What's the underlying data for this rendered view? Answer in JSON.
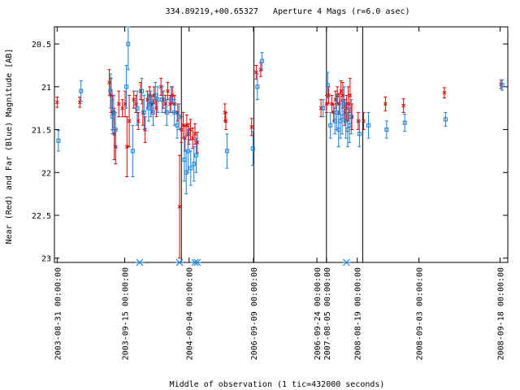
{
  "chart_data": {
    "type": "scatter",
    "title": "334.89219,+00.65327   Aperture 4 Mags (r=6.0 asec)",
    "xlabel": "Middle of observation (1 tic=432000 seconds)",
    "ylabel": "Near (Red) and Far (Blue) Magnitude [AB]",
    "ylim": [
      23.05,
      20.3
    ],
    "y_inverted": true,
    "y_ticks": [
      "20.5",
      "21",
      "21.5",
      "22",
      "22.5",
      "23"
    ],
    "x_tick_labels": [
      "2003-08-31 00:00:00",
      "2003-09-15 00:00:00",
      "2004-09-04 00:00:00",
      "2006-09-09 00:00:00",
      "2006-09-24 00:00:00",
      "2007-08-05 00:00:00",
      "2008-08-19 00:00:00",
      "2008-09-03 00:00:00",
      "2008-09-18 00:00:00"
    ],
    "x_axis_note": "discontinuous time axis; segment breaks shown as vertical lines",
    "segment_breaks_x": [
      0.28,
      0.44,
      0.6,
      0.68
    ],
    "x_range": [
      0,
      1
    ],
    "grid": false,
    "colors": {
      "near": "#dd0000",
      "far": "#1a7fd6",
      "axis": "#000000"
    },
    "series": [
      {
        "name": "Near",
        "marker": "x",
        "points": [
          {
            "x": 0.006,
            "y": 21.18,
            "err": 0.06
          },
          {
            "x": 0.056,
            "y": 21.18,
            "err": 0.06
          },
          {
            "x": 0.121,
            "y": 20.95,
            "err": 0.15
          },
          {
            "x": 0.125,
            "y": 21.1,
            "err": 0.2
          },
          {
            "x": 0.128,
            "y": 21.3,
            "err": 0.2
          },
          {
            "x": 0.132,
            "y": 21.55,
            "err": 0.3
          },
          {
            "x": 0.135,
            "y": 21.7,
            "err": 0.2
          },
          {
            "x": 0.142,
            "y": 21.2,
            "err": 0.15
          },
          {
            "x": 0.15,
            "y": 21.25,
            "err": 0.1
          },
          {
            "x": 0.156,
            "y": 21.2,
            "err": 0.15
          },
          {
            "x": 0.16,
            "y": 21.7,
            "err": 0.35
          },
          {
            "x": 0.165,
            "y": 21.4,
            "err": 0.3
          },
          {
            "x": 0.175,
            "y": 21.15,
            "err": 0.1
          },
          {
            "x": 0.18,
            "y": 21.2,
            "err": 0.1
          },
          {
            "x": 0.185,
            "y": 21.4,
            "err": 0.1
          },
          {
            "x": 0.19,
            "y": 21.05,
            "err": 0.1
          },
          {
            "x": 0.195,
            "y": 21.3,
            "err": 0.15
          },
          {
            "x": 0.2,
            "y": 21.5,
            "err": 0.15
          },
          {
            "x": 0.205,
            "y": 21.15,
            "err": 0.1
          },
          {
            "x": 0.21,
            "y": 21.1,
            "err": 0.1
          },
          {
            "x": 0.215,
            "y": 21.2,
            "err": 0.1
          },
          {
            "x": 0.22,
            "y": 21.1,
            "err": 0.1
          },
          {
            "x": 0.225,
            "y": 21.25,
            "err": 0.1
          },
          {
            "x": 0.235,
            "y": 21.0,
            "err": 0.1
          },
          {
            "x": 0.24,
            "y": 21.15,
            "err": 0.1
          },
          {
            "x": 0.245,
            "y": 21.2,
            "err": 0.1
          },
          {
            "x": 0.25,
            "y": 21.05,
            "err": 0.1
          },
          {
            "x": 0.255,
            "y": 21.2,
            "err": 0.1
          },
          {
            "x": 0.26,
            "y": 21.1,
            "err": 0.1
          },
          {
            "x": 0.265,
            "y": 21.2,
            "err": 0.1
          },
          {
            "x": 0.272,
            "y": 21.3,
            "err": 0.1
          },
          {
            "x": 0.276,
            "y": 22.4,
            "err": 0.6
          },
          {
            "x": 0.28,
            "y": 21.5,
            "err": 0.15
          },
          {
            "x": 0.284,
            "y": 21.45,
            "err": 0.15
          },
          {
            "x": 0.288,
            "y": 21.6,
            "err": 0.15
          },
          {
            "x": 0.292,
            "y": 21.45,
            "err": 0.12
          },
          {
            "x": 0.296,
            "y": 21.55,
            "err": 0.12
          },
          {
            "x": 0.3,
            "y": 21.5,
            "err": 0.12
          },
          {
            "x": 0.305,
            "y": 21.6,
            "err": 0.12
          },
          {
            "x": 0.31,
            "y": 21.55,
            "err": 0.12
          },
          {
            "x": 0.315,
            "y": 21.65,
            "err": 0.12
          },
          {
            "x": 0.376,
            "y": 21.3,
            "err": 0.1
          },
          {
            "x": 0.378,
            "y": 21.4,
            "err": 0.1
          },
          {
            "x": 0.435,
            "y": 21.47,
            "err": 0.1
          },
          {
            "x": 0.445,
            "y": 20.83,
            "err": 0.08
          },
          {
            "x": 0.455,
            "y": 20.8,
            "err": 0.08
          },
          {
            "x": 0.588,
            "y": 21.25,
            "err": 0.1
          },
          {
            "x": 0.6,
            "y": 21.2,
            "err": 0.1
          },
          {
            "x": 0.605,
            "y": 21.1,
            "err": 0.1
          },
          {
            "x": 0.612,
            "y": 21.2,
            "err": 0.1
          },
          {
            "x": 0.616,
            "y": 21.3,
            "err": 0.1
          },
          {
            "x": 0.62,
            "y": 21.15,
            "err": 0.1
          },
          {
            "x": 0.624,
            "y": 21.1,
            "err": 0.1
          },
          {
            "x": 0.628,
            "y": 21.2,
            "err": 0.12
          },
          {
            "x": 0.632,
            "y": 21.05,
            "err": 0.12
          },
          {
            "x": 0.636,
            "y": 21.1,
            "err": 0.15
          },
          {
            "x": 0.64,
            "y": 21.3,
            "err": 0.15
          },
          {
            "x": 0.644,
            "y": 21.25,
            "err": 0.15
          },
          {
            "x": 0.648,
            "y": 21.2,
            "err": 0.2
          },
          {
            "x": 0.652,
            "y": 21.1,
            "err": 0.2
          },
          {
            "x": 0.656,
            "y": 21.35,
            "err": 0.15
          },
          {
            "x": 0.67,
            "y": 21.4,
            "err": 0.1
          },
          {
            "x": 0.682,
            "y": 21.4,
            "err": 0.1
          },
          {
            "x": 0.73,
            "y": 21.2,
            "err": 0.08
          },
          {
            "x": 0.77,
            "y": 21.22,
            "err": 0.08
          },
          {
            "x": 0.86,
            "y": 21.07,
            "err": 0.06
          },
          {
            "x": 0.985,
            "y": 20.97,
            "err": 0.05
          }
        ]
      },
      {
        "name": "Far",
        "marker": "square",
        "points": [
          {
            "x": 0.006,
            "y": 21.63,
            "err": 0.12
          },
          {
            "x": 0.056,
            "y": 21.05,
            "err": 0.12
          },
          {
            "x": 0.121,
            "y": 21.05,
            "err": 0.2
          },
          {
            "x": 0.125,
            "y": 21.35,
            "err": 0.2
          },
          {
            "x": 0.128,
            "y": 21.3,
            "err": 0.2
          },
          {
            "x": 0.132,
            "y": 21.5,
            "err": 0.2
          },
          {
            "x": 0.156,
            "y": 21.0,
            "err": 0.25
          },
          {
            "x": 0.16,
            "y": 20.5,
            "err": 0.3
          },
          {
            "x": 0.17,
            "y": 21.75,
            "err": 0.3
          },
          {
            "x": 0.18,
            "y": 21.25,
            "err": 0.2
          },
          {
            "x": 0.19,
            "y": 21.05,
            "err": 0.15
          },
          {
            "x": 0.195,
            "y": 21.3,
            "err": 0.2
          },
          {
            "x": 0.205,
            "y": 21.25,
            "err": 0.15
          },
          {
            "x": 0.21,
            "y": 21.2,
            "err": 0.15
          },
          {
            "x": 0.215,
            "y": 21.3,
            "err": 0.15
          },
          {
            "x": 0.22,
            "y": 21.1,
            "err": 0.15
          },
          {
            "x": 0.225,
            "y": 21.15,
            "err": 0.15
          },
          {
            "x": 0.235,
            "y": 21.15,
            "err": 0.15
          },
          {
            "x": 0.245,
            "y": 21.3,
            "err": 0.15
          },
          {
            "x": 0.255,
            "y": 21.15,
            "err": 0.15
          },
          {
            "x": 0.262,
            "y": 21.3,
            "err": 0.15
          },
          {
            "x": 0.268,
            "y": 21.45,
            "err": 0.15
          },
          {
            "x": 0.272,
            "y": 21.35,
            "err": 0.15
          },
          {
            "x": 0.284,
            "y": 21.85,
            "err": 0.25
          },
          {
            "x": 0.288,
            "y": 22.0,
            "err": 0.25
          },
          {
            "x": 0.292,
            "y": 21.75,
            "err": 0.25
          },
          {
            "x": 0.298,
            "y": 21.95,
            "err": 0.2
          },
          {
            "x": 0.305,
            "y": 21.9,
            "err": 0.2
          },
          {
            "x": 0.31,
            "y": 21.8,
            "err": 0.2
          },
          {
            "x": 0.378,
            "y": 21.75,
            "err": 0.2
          },
          {
            "x": 0.435,
            "y": 21.72,
            "err": 0.2
          },
          {
            "x": 0.445,
            "y": 21.0,
            "err": 0.15
          },
          {
            "x": 0.455,
            "y": 20.7,
            "err": 0.1
          },
          {
            "x": 0.59,
            "y": 21.25,
            "err": 0.1
          },
          {
            "x": 0.6,
            "y": 20.98,
            "err": 0.15
          },
          {
            "x": 0.606,
            "y": 21.45,
            "err": 0.15
          },
          {
            "x": 0.616,
            "y": 21.4,
            "err": 0.15
          },
          {
            "x": 0.62,
            "y": 21.3,
            "err": 0.2
          },
          {
            "x": 0.624,
            "y": 21.5,
            "err": 0.2
          },
          {
            "x": 0.628,
            "y": 21.4,
            "err": 0.2
          },
          {
            "x": 0.632,
            "y": 21.35,
            "err": 0.2
          },
          {
            "x": 0.636,
            "y": 21.2,
            "err": 0.2
          },
          {
            "x": 0.64,
            "y": 21.4,
            "err": 0.2
          },
          {
            "x": 0.644,
            "y": 21.5,
            "err": 0.2
          },
          {
            "x": 0.648,
            "y": 21.45,
            "err": 0.2
          },
          {
            "x": 0.652,
            "y": 21.35,
            "err": 0.2
          },
          {
            "x": 0.67,
            "y": 21.55,
            "err": 0.15
          },
          {
            "x": 0.69,
            "y": 21.45,
            "err": 0.15
          },
          {
            "x": 0.73,
            "y": 21.5,
            "err": 0.1
          },
          {
            "x": 0.77,
            "y": 21.42,
            "err": 0.1
          },
          {
            "x": 0.86,
            "y": 21.38,
            "err": 0.08
          },
          {
            "x": 0.985,
            "y": 20.98,
            "err": 0.06
          }
        ]
      }
    ],
    "bottom_markers": {
      "marker": "asterisk",
      "y": 23.05,
      "x": [
        0.188,
        0.276,
        0.31,
        0.315,
        0.644
      ]
    }
  }
}
